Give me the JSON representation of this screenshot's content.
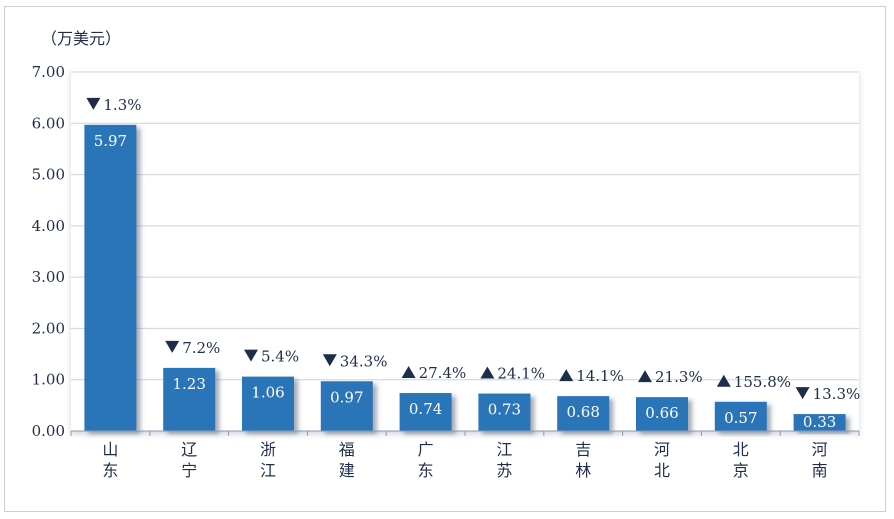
{
  "chart_data": {
    "type": "bar",
    "unit": "（万美元）",
    "categories": [
      "山东",
      "辽宁",
      "浙江",
      "福建",
      "广东",
      "江苏",
      "吉林",
      "河北",
      "北京",
      "河南"
    ],
    "values": [
      5.97,
      1.23,
      1.06,
      0.97,
      0.74,
      0.73,
      0.68,
      0.66,
      0.57,
      0.33
    ],
    "value_labels": [
      "5.97",
      "1.23",
      "1.06",
      "0.97",
      "0.74",
      "0.73",
      "0.68",
      "0.66",
      "0.57",
      "0.33"
    ],
    "changes": [
      {
        "direction": "down",
        "text": "1.3%"
      },
      {
        "direction": "down",
        "text": "7.2%"
      },
      {
        "direction": "down",
        "text": "5.4%"
      },
      {
        "direction": "down",
        "text": "34.3%"
      },
      {
        "direction": "up",
        "text": "27.4%"
      },
      {
        "direction": "up",
        "text": "24.1%"
      },
      {
        "direction": "up",
        "text": "14.1%"
      },
      {
        "direction": "up",
        "text": "21.3%"
      },
      {
        "direction": "up",
        "text": "155.8%"
      },
      {
        "direction": "down",
        "text": "13.3%"
      }
    ],
    "yticks": [
      "0.00",
      "1.00",
      "2.00",
      "3.00",
      "4.00",
      "5.00",
      "6.00",
      "7.00"
    ],
    "ylim": [
      0,
      7
    ],
    "grid": true,
    "colors": {
      "bar": "#2c74b8",
      "text": "#1f2d4d",
      "grid": "#c8d4e6",
      "axis": "#8a9bb5"
    }
  }
}
